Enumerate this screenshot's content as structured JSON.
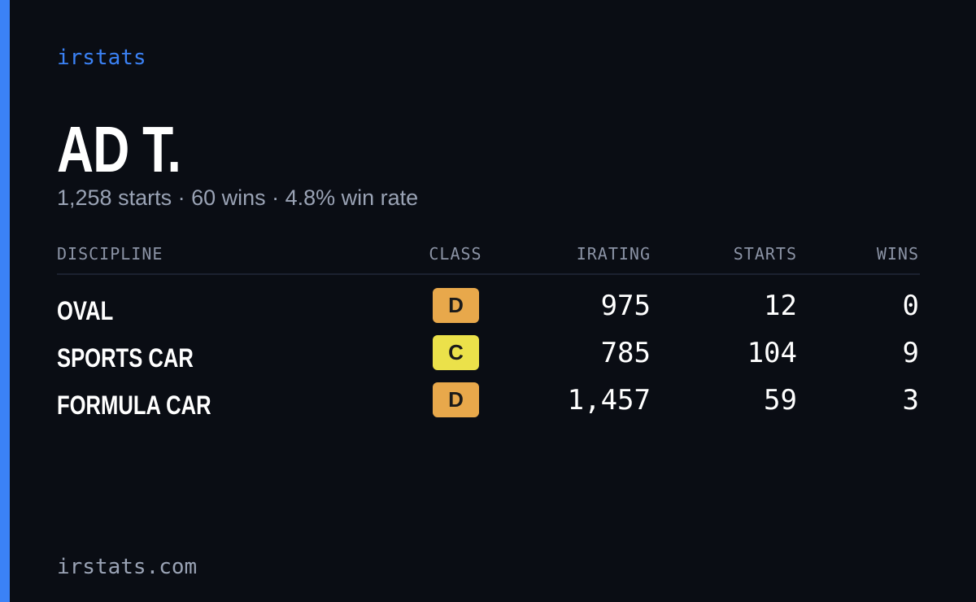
{
  "header": {
    "brand": "irstats",
    "name": "AD T.",
    "summary": "1,258 starts · 60 wins · 4.8% win rate"
  },
  "table": {
    "columns": [
      "DISCIPLINE",
      "CLASS",
      "IRATING",
      "STARTS",
      "WINS"
    ],
    "rows": [
      {
        "discipline": "OVAL",
        "class": "D",
        "class_color": "#e8a84b",
        "irating": "975",
        "starts": "12",
        "wins": "0"
      },
      {
        "discipline": "SPORTS CAR",
        "class": "C",
        "class_color": "#ebe14a",
        "irating": "785",
        "starts": "104",
        "wins": "9"
      },
      {
        "discipline": "FORMULA CAR",
        "class": "D",
        "class_color": "#e8a84b",
        "irating": "1,457",
        "starts": "59",
        "wins": "3"
      }
    ]
  },
  "footer": {
    "site": "irstats.com"
  }
}
